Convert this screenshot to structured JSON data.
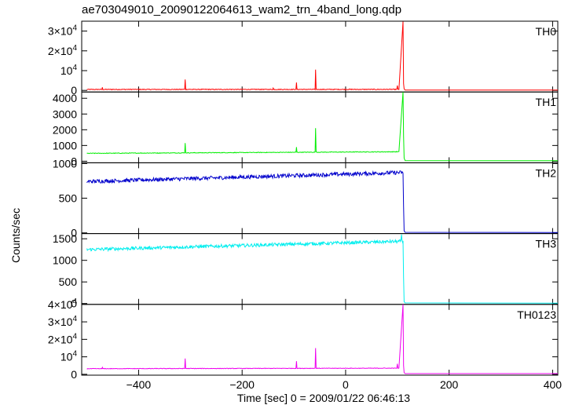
{
  "title": "ae703049010_20090122064613_wam2_trn_4band_long.qdp",
  "ylabel": "Counts/sec",
  "xlabel": "Time [sec] 0 = 2009/01/22 06:46:13",
  "chart_data": {
    "type": "line",
    "title": "ae703049010_20090122064613_wam2_trn_4band_long.qdp",
    "xlabel": "Time [sec] 0 = 2009/01/22 06:46:13",
    "ylabel": "Counts/sec",
    "xlim": [
      -510,
      410
    ],
    "xticks": [
      -400,
      -200,
      0,
      200,
      400
    ],
    "xtick_labels": [
      "−400",
      "−200",
      "0",
      "200",
      "400"
    ],
    "grid": false,
    "panels": [
      {
        "name": "TH0",
        "color": "#ff0000",
        "ylim": [
          -800,
          35000
        ],
        "yticks": [
          0,
          10000,
          20000,
          30000
        ],
        "ytick_labels": [
          {
            "text": "0",
            "sup": ""
          },
          {
            "text": "10",
            "sup": "4"
          },
          {
            "text": "2×10",
            "sup": "4"
          },
          {
            "text": "3×10",
            "sup": "4"
          }
        ],
        "baseline": [
          -500,
          500,
          103,
          520
        ],
        "noise": 180,
        "spikes": [
          [
            -470,
            1600
          ],
          [
            -310,
            5500
          ],
          [
            -140,
            1200
          ],
          [
            -95,
            4000
          ],
          [
            -58,
            10500
          ],
          [
            100,
            2500
          ],
          [
            105,
            6000
          ],
          [
            110,
            8000
          ]
        ],
        "burst_time": 111,
        "burst_peak": 34800,
        "tail": [
          [
            112,
            3500
          ],
          [
            113,
            800
          ],
          [
            115,
            200
          ],
          [
            410,
            200
          ]
        ]
      },
      {
        "name": "TH1",
        "color": "#00ee00",
        "ylim": [
          -100,
          4400
        ],
        "yticks": [
          0,
          1000,
          2000,
          3000,
          4000
        ],
        "ytick_labels": [
          {
            "text": "0",
            "sup": ""
          },
          {
            "text": "1000",
            "sup": ""
          },
          {
            "text": "2000",
            "sup": ""
          },
          {
            "text": "3000",
            "sup": ""
          },
          {
            "text": "4000",
            "sup": ""
          }
        ],
        "baseline": [
          -500,
          500,
          103,
          600
        ],
        "noise": 20,
        "spikes": [
          [
            -310,
            1150
          ],
          [
            -95,
            900
          ],
          [
            -58,
            2100
          ],
          [
            105,
            1000
          ],
          [
            110,
            1400
          ]
        ],
        "burst_time": 111,
        "burst_peak": 4400,
        "tail": [
          [
            112,
            1600
          ],
          [
            113,
            200
          ],
          [
            115,
            40
          ],
          [
            410,
            30
          ]
        ]
      },
      {
        "name": "TH2",
        "color": "#0000cc",
        "ylim": [
          -10,
          1010
        ],
        "yticks": [
          0,
          500,
          1000
        ],
        "ytick_labels": [
          {
            "text": "0",
            "sup": ""
          },
          {
            "text": "500",
            "sup": ""
          },
          {
            "text": "1000",
            "sup": ""
          }
        ],
        "baseline": [
          -500,
          740,
          110,
          870
        ],
        "noise": 28,
        "spikes": [],
        "burst_time": null,
        "burst_peak": null,
        "tail": [
          [
            111,
            860
          ],
          [
            112,
            380
          ],
          [
            113,
            30
          ],
          [
            115,
            8
          ],
          [
            410,
            5
          ]
        ]
      },
      {
        "name": "TH3",
        "color": "#00eeee",
        "ylim": [
          -20,
          1620
        ],
        "yticks": [
          0,
          500,
          1000,
          1500
        ],
        "ytick_labels": [
          {
            "text": "0",
            "sup": ""
          },
          {
            "text": "500",
            "sup": ""
          },
          {
            "text": "1000",
            "sup": ""
          },
          {
            "text": "1500",
            "sup": ""
          }
        ],
        "baseline": [
          -500,
          1250,
          110,
          1440
        ],
        "noise": 38,
        "spikes": [
          [
            108,
            1600
          ]
        ],
        "burst_time": null,
        "burst_peak": null,
        "tail": [
          [
            111,
            1450
          ],
          [
            112,
            600
          ],
          [
            113,
            40
          ],
          [
            115,
            15
          ],
          [
            410,
            10
          ]
        ]
      },
      {
        "name": "TH0123",
        "color": "#ee00ee",
        "ylim": [
          -500,
          40000
        ],
        "yticks": [
          0,
          10000,
          20000,
          30000,
          40000
        ],
        "ytick_labels": [
          {
            "text": "0",
            "sup": ""
          },
          {
            "text": "10",
            "sup": "4"
          },
          {
            "text": "2×10",
            "sup": "4"
          },
          {
            "text": "3×10",
            "sup": "4"
          },
          {
            "text": "4×10",
            "sup": "4"
          }
        ],
        "baseline": [
          -500,
          3200,
          103,
          3500
        ],
        "noise": 150,
        "spikes": [
          [
            -470,
            4000
          ],
          [
            -310,
            9000
          ],
          [
            -95,
            7500
          ],
          [
            -58,
            15000
          ],
          [
            100,
            6000
          ],
          [
            105,
            8000
          ],
          [
            110,
            12000
          ]
        ],
        "burst_time": 111,
        "burst_peak": 40000,
        "tail": [
          [
            112,
            5000
          ],
          [
            113,
            1000
          ],
          [
            115,
            400
          ],
          [
            410,
            400
          ]
        ]
      }
    ]
  }
}
